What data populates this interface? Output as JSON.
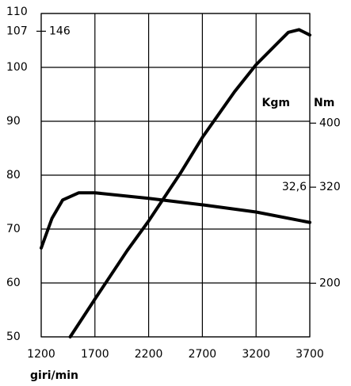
{
  "chart_data": {
    "type": "line",
    "x_label": "giri/min",
    "y2_label": "Nm",
    "y2_unit_label": "Kgm",
    "xlim": [
      1200,
      3700
    ],
    "xticks": [
      1200,
      1700,
      2200,
      2700,
      3200,
      3700
    ],
    "ylim": [
      50,
      110
    ],
    "yticks": [
      50,
      60,
      70,
      80,
      90,
      100,
      110
    ],
    "y2lim": [
      133,
      537
    ],
    "y2ticks": [
      200,
      320,
      400
    ],
    "grid": true,
    "peak_marker": {
      "y": 107,
      "text": "146"
    },
    "torque_marker": {
      "y2": 320,
      "text": "32,6"
    },
    "series": [
      {
        "color": "#000000",
        "x": [
          1470,
          1700,
          2000,
          2200,
          2500,
          2700,
          3000,
          3200,
          3400,
          3500,
          3600,
          3700
        ],
        "values": [
          50,
          57,
          66,
          71.5,
          80.5,
          87,
          95.5,
          100.5,
          104.5,
          106.5,
          107,
          106
        ]
      },
      {
        "color": "#000000",
        "axis": "y2",
        "x": [
          1200,
          1300,
          1400,
          1550,
          1700,
          2200,
          2700,
          3200,
          3700
        ],
        "values": [
          244,
          281,
          304,
          313,
          313,
          306,
          298,
          289,
          276
        ]
      }
    ]
  }
}
